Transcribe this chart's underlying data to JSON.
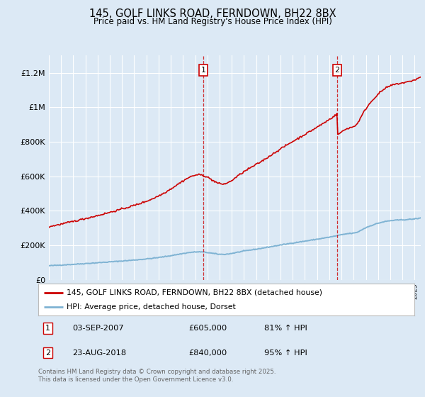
{
  "title": "145, GOLF LINKS ROAD, FERNDOWN, BH22 8BX",
  "subtitle": "Price paid vs. HM Land Registry's House Price Index (HPI)",
  "background_color": "#dce9f5",
  "plot_bg_color": "#dce9f5",
  "ylim": [
    0,
    1300000
  ],
  "yticks": [
    0,
    200000,
    400000,
    600000,
    800000,
    1000000,
    1200000
  ],
  "ytick_labels": [
    "£0",
    "£200K",
    "£400K",
    "£600K",
    "£800K",
    "£1M",
    "£1.2M"
  ],
  "marker1_x": 2007.67,
  "marker2_x": 2018.64,
  "legend_line1": "145, GOLF LINKS ROAD, FERNDOWN, BH22 8BX (detached house)",
  "legend_line2": "HPI: Average price, detached house, Dorset",
  "footer": "Contains HM Land Registry data © Crown copyright and database right 2025.\nThis data is licensed under the Open Government Licence v3.0.",
  "line_color_red": "#cc0000",
  "line_color_blue": "#7fb3d3",
  "grid_color": "#ffffff",
  "xstart": 1995.0,
  "xend": 2025.5
}
